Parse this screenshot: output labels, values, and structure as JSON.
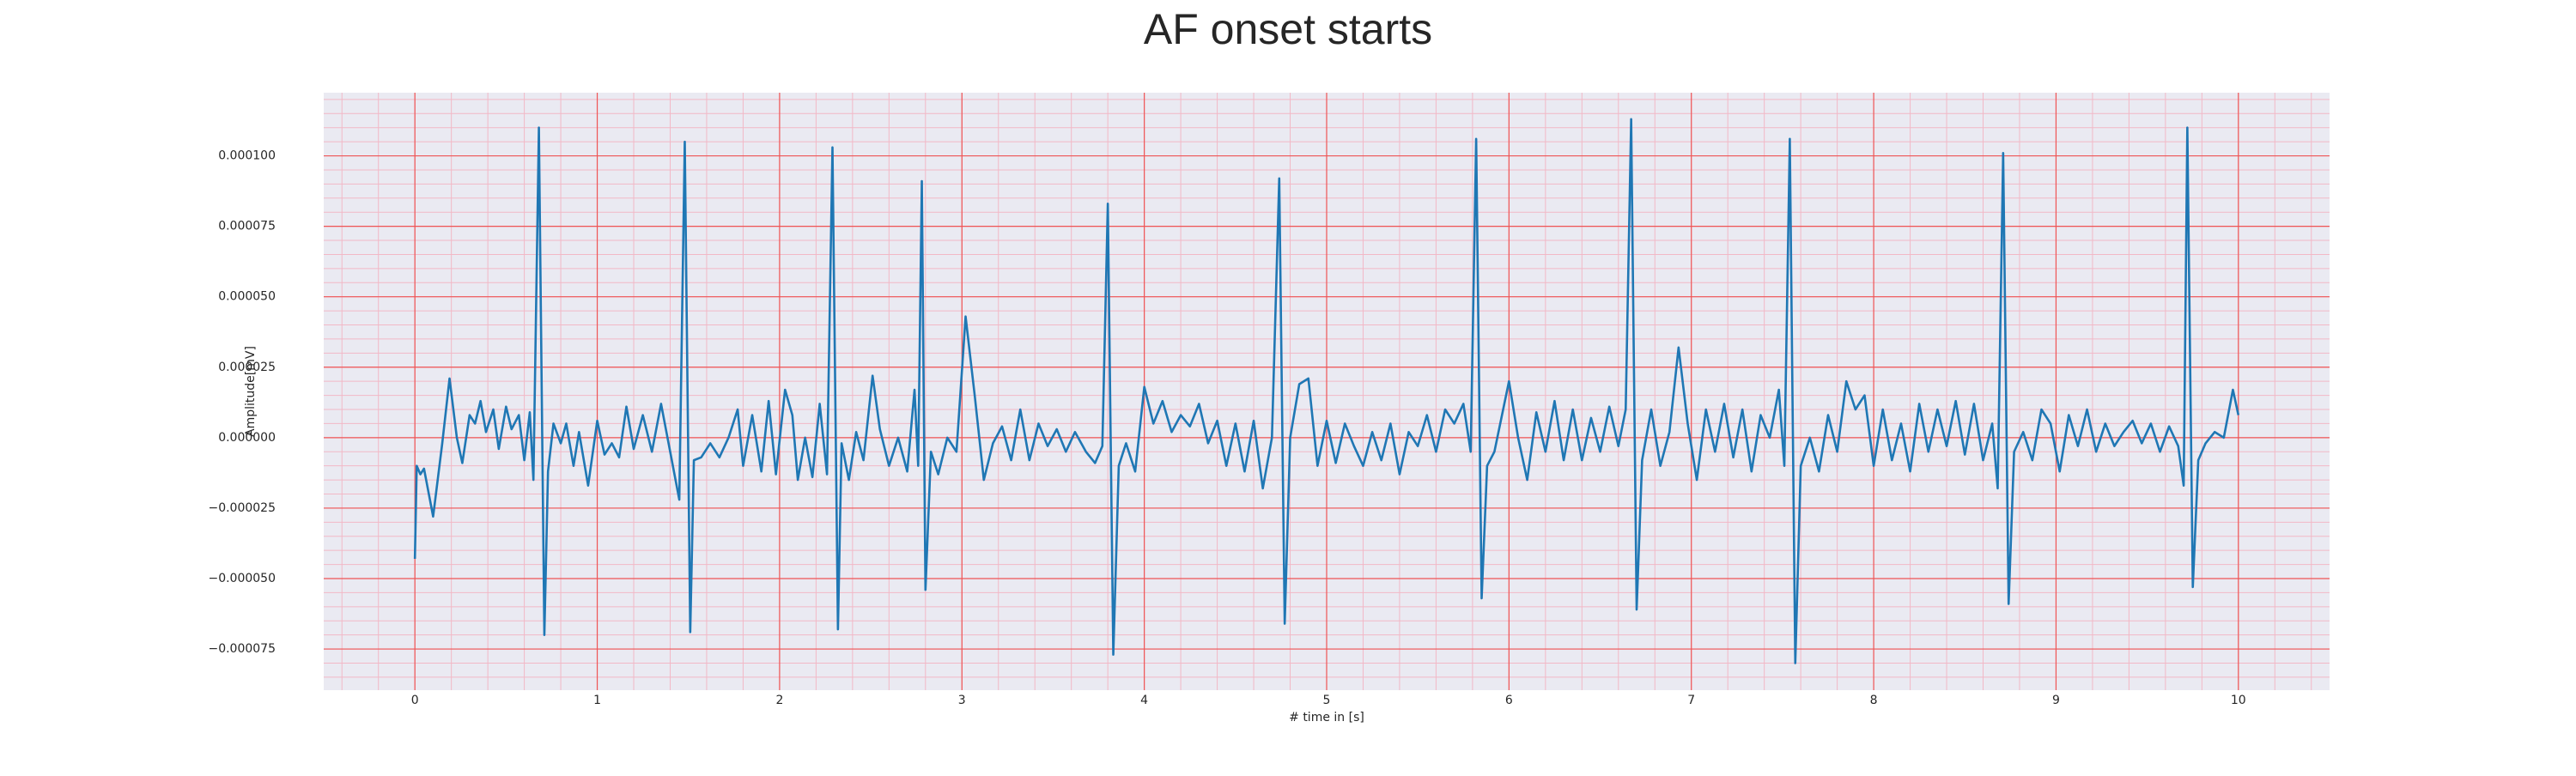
{
  "chart_data": {
    "type": "line",
    "title": "AF onset starts",
    "xlabel": "# time in [s]",
    "ylabel": "Amplitude[mV]",
    "xlim": [
      -0.5,
      10.5
    ],
    "ylim": [
      -8.96e-05,
      0.0001224
    ],
    "xticks": [
      0,
      1,
      2,
      3,
      4,
      5,
      6,
      7,
      8,
      9,
      10
    ],
    "yticks": [
      {
        "value": -7.5e-05,
        "label": "−0.000075"
      },
      {
        "value": -5e-05,
        "label": "−0.000050"
      },
      {
        "value": -2.5e-05,
        "label": "−0.000025"
      },
      {
        "value": 0,
        "label": "0.000000"
      },
      {
        "value": 2.5e-05,
        "label": "0.000025"
      },
      {
        "value": 5e-05,
        "label": "0.000050"
      },
      {
        "value": 7.5e-05,
        "label": "0.000075"
      },
      {
        "value": 0.0001,
        "label": "0.000100"
      }
    ],
    "grid": true,
    "minor_grid": true,
    "x": [
      0,
      0.01,
      0.03,
      0.05,
      0.1,
      0.15,
      0.19,
      0.23,
      0.26,
      0.3,
      0.33,
      0.36,
      0.39,
      0.43,
      0.46,
      0.5,
      0.53,
      0.57,
      0.6,
      0.63,
      0.65,
      0.68,
      0.71,
      0.73,
      0.76,
      0.8,
      0.83,
      0.87,
      0.9,
      0.95,
      1.0,
      1.04,
      1.08,
      1.12,
      1.16,
      1.2,
      1.25,
      1.3,
      1.35,
      1.4,
      1.45,
      1.48,
      1.51,
      1.53,
      1.57,
      1.62,
      1.67,
      1.72,
      1.77,
      1.8,
      1.85,
      1.9,
      1.94,
      1.98,
      2.03,
      2.07,
      2.1,
      2.14,
      2.18,
      2.22,
      2.26,
      2.29,
      2.32,
      2.34,
      2.38,
      2.42,
      2.46,
      2.51,
      2.55,
      2.6,
      2.65,
      2.7,
      2.74,
      2.76,
      2.78,
      2.8,
      2.83,
      2.87,
      2.92,
      2.97,
      3.02,
      3.07,
      3.12,
      3.17,
      3.22,
      3.27,
      3.32,
      3.37,
      3.42,
      3.47,
      3.52,
      3.57,
      3.62,
      3.68,
      3.73,
      3.77,
      3.8,
      3.83,
      3.86,
      3.9,
      3.95,
      4.0,
      4.05,
      4.1,
      4.15,
      4.2,
      4.25,
      4.3,
      4.35,
      4.4,
      4.45,
      4.5,
      4.55,
      4.6,
      4.65,
      4.7,
      4.74,
      4.77,
      4.8,
      4.85,
      4.9,
      4.95,
      5.0,
      5.05,
      5.1,
      5.15,
      5.2,
      5.25,
      5.3,
      5.35,
      5.4,
      5.45,
      5.5,
      5.55,
      5.6,
      5.65,
      5.7,
      5.75,
      5.79,
      5.82,
      5.85,
      5.88,
      5.92,
      6.0,
      6.05,
      6.1,
      6.15,
      6.2,
      6.25,
      6.3,
      6.35,
      6.4,
      6.45,
      6.5,
      6.55,
      6.6,
      6.64,
      6.67,
      6.7,
      6.73,
      6.78,
      6.83,
      6.88,
      6.93,
      6.98,
      7.03,
      7.08,
      7.13,
      7.18,
      7.23,
      7.28,
      7.33,
      7.38,
      7.43,
      7.48,
      7.51,
      7.54,
      7.57,
      7.6,
      7.65,
      7.7,
      7.75,
      7.8,
      7.85,
      7.9,
      7.95,
      8.0,
      8.05,
      8.1,
      8.15,
      8.2,
      8.25,
      8.3,
      8.35,
      8.4,
      8.45,
      8.5,
      8.55,
      8.6,
      8.65,
      8.68,
      8.71,
      8.74,
      8.77,
      8.82,
      8.87,
      8.92,
      8.97,
      9.02,
      9.07,
      9.12,
      9.17,
      9.22,
      9.27,
      9.32,
      9.37,
      9.42,
      9.47,
      9.52,
      9.57,
      9.62,
      9.67,
      9.7,
      9.72,
      9.75,
      9.78,
      9.82,
      9.87,
      9.92,
      9.97,
      10.0
    ],
    "series": [
      {
        "color": "#1f77b4",
        "values": [
          -4.3e-05,
          -1e-05,
          -1.3e-05,
          -1.1e-05,
          -2.8e-05,
          -2e-06,
          2.1e-05,
          0,
          -9e-06,
          8e-06,
          5e-06,
          1.3e-05,
          2e-06,
          1e-05,
          -4e-06,
          1.1e-05,
          3e-06,
          8e-06,
          -8e-06,
          9e-06,
          -1.5e-05,
          0.00011,
          -7e-05,
          -1.2e-05,
          5e-06,
          -2e-06,
          5e-06,
          -1e-05,
          2e-06,
          -1.7e-05,
          6e-06,
          -6e-06,
          -2e-06,
          -7e-06,
          1.1e-05,
          -4e-06,
          8e-06,
          -5e-06,
          1.2e-05,
          -5e-06,
          -2.2e-05,
          0.000105,
          -6.9e-05,
          -8e-06,
          -7e-06,
          -2e-06,
          -7e-06,
          0,
          1e-05,
          -1e-05,
          8e-06,
          -1.2e-05,
          1.3e-05,
          -1.3e-05,
          1.7e-05,
          8e-06,
          -1.5e-05,
          0,
          -1.4e-05,
          1.2e-05,
          -1.3e-05,
          0.000103,
          -6.8e-05,
          -2e-06,
          -1.5e-05,
          2e-06,
          -8e-06,
          2.2e-05,
          3e-06,
          -1e-05,
          0,
          -1.2e-05,
          1.7e-05,
          -1e-05,
          9.1e-05,
          -5.4e-05,
          -5e-06,
          -1.3e-05,
          0,
          -5e-06,
          4.3e-05,
          1.5e-05,
          -1.5e-05,
          -2e-06,
          4e-06,
          -8e-06,
          1e-05,
          -8e-06,
          5e-06,
          -3e-06,
          3e-06,
          -5e-06,
          2e-06,
          -5e-06,
          -9e-06,
          -3e-06,
          8.3e-05,
          -7.7e-05,
          -1e-05,
          -2e-06,
          -1.2e-05,
          1.8e-05,
          5e-06,
          1.3e-05,
          2e-06,
          8e-06,
          4e-06,
          1.2e-05,
          -2e-06,
          6e-06,
          -1e-05,
          5e-06,
          -1.2e-05,
          6e-06,
          -1.8e-05,
          0,
          9.2e-05,
          -6.6e-05,
          0,
          1.9e-05,
          2.1e-05,
          -1e-05,
          6e-06,
          -9e-06,
          5e-06,
          -3e-06,
          -1e-05,
          2e-06,
          -8e-06,
          5e-06,
          -1.3e-05,
          2e-06,
          -3e-06,
          8e-06,
          -5e-06,
          1e-05,
          5e-06,
          1.2e-05,
          -5e-06,
          0.000106,
          -5.7e-05,
          -1e-05,
          -5e-06,
          2e-05,
          0,
          -1.5e-05,
          9e-06,
          -5e-06,
          1.3e-05,
          -8e-06,
          1e-05,
          -8e-06,
          7e-06,
          -5e-06,
          1.1e-05,
          -3e-06,
          1e-05,
          0.000113,
          -6.1e-05,
          -8e-06,
          1e-05,
          -1e-05,
          2e-06,
          3.2e-05,
          5e-06,
          -1.5e-05,
          1e-05,
          -5e-06,
          1.2e-05,
          -7e-06,
          1e-05,
          -1.2e-05,
          8e-06,
          0,
          1.7e-05,
          -1e-05,
          0.000106,
          -8e-05,
          -1e-05,
          0,
          -1.2e-05,
          8e-06,
          -5e-06,
          2e-05,
          1e-05,
          1.5e-05,
          -1e-05,
          1e-05,
          -8e-06,
          5e-06,
          -1.2e-05,
          1.2e-05,
          -5e-06,
          1e-05,
          -3e-06,
          1.3e-05,
          -6e-06,
          1.2e-05,
          -8e-06,
          5e-06,
          -1.8e-05,
          0.000101,
          -5.9e-05,
          -5e-06,
          2e-06,
          -8e-06,
          1e-05,
          5e-06,
          -1.2e-05,
          8e-06,
          -3e-06,
          1e-05,
          -5e-06,
          5e-06,
          -3e-06,
          2e-06,
          6e-06,
          -2e-06,
          5e-06,
          -5e-06,
          4e-06,
          -3e-06,
          -1.7e-05,
          0.00011,
          -5.3e-05,
          -8e-06,
          -2e-06,
          2e-06,
          0,
          1.7e-05,
          8e-06
        ]
      }
    ]
  }
}
